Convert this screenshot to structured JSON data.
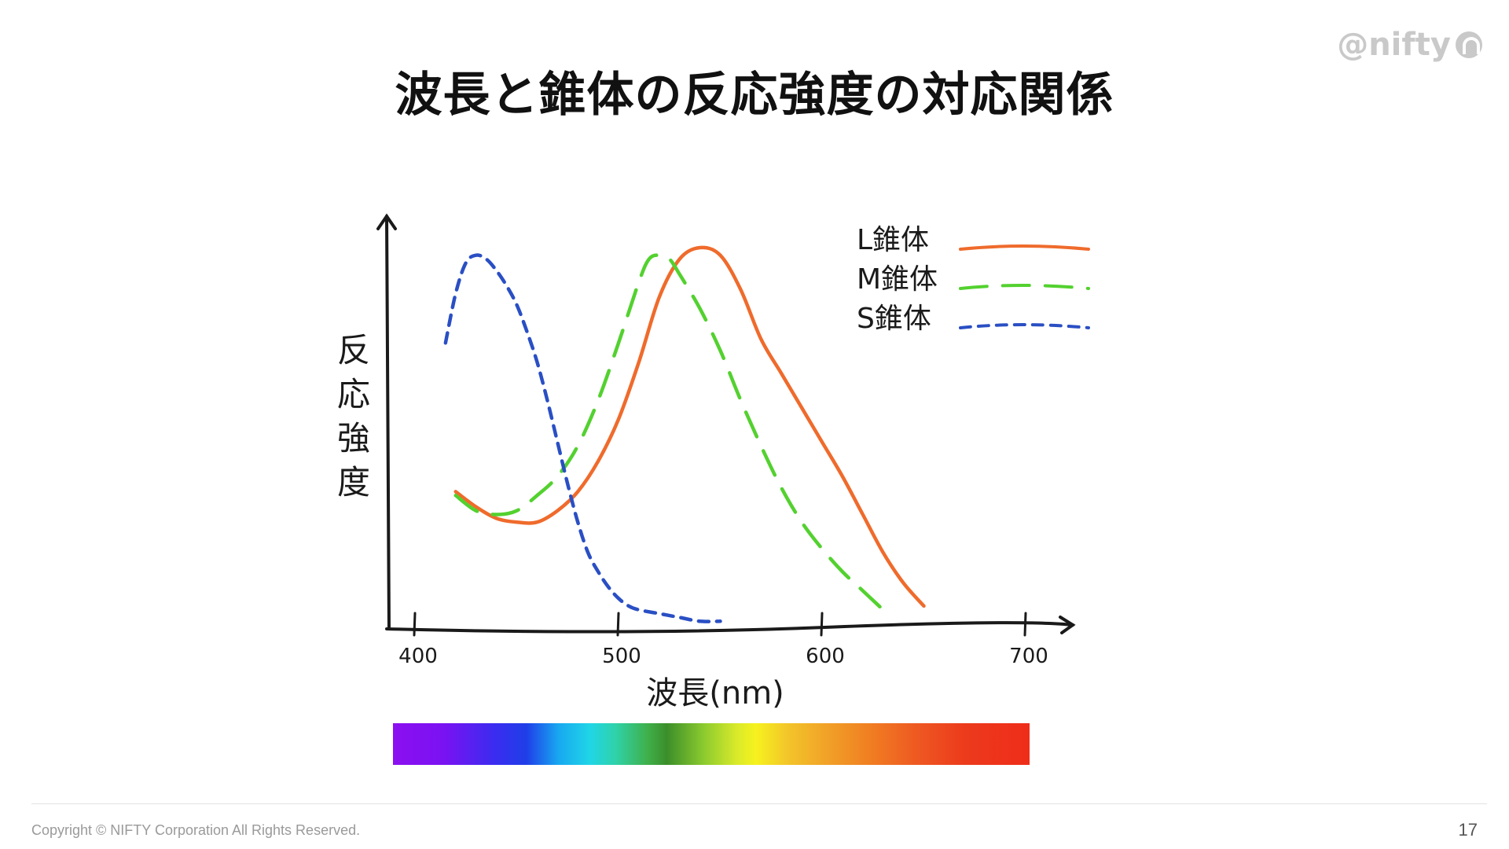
{
  "slide": {
    "title": "波長と錐体の反応強度の対応関係",
    "logo_text": "@nifty",
    "copyright": "Copyright © NIFTY Corporation All Rights Reserved.",
    "page_number": "17"
  },
  "chart_data": {
    "type": "line",
    "title": "",
    "xlabel": "波長(nm)",
    "ylabel": "反応強度",
    "xlim": [
      395,
      725
    ],
    "ylim": [
      0,
      1
    ],
    "x_ticks": [
      400,
      500,
      600,
      700
    ],
    "x_tick_labels": [
      "400",
      "500",
      "600",
      "700"
    ],
    "grid": false,
    "legend_position": "top-right",
    "series": [
      {
        "name": "L錐体",
        "color": "#ef6b2c",
        "dash": "solid",
        "x": [
          420,
          430,
          440,
          450,
          460,
          470,
          480,
          490,
          500,
          510,
          520,
          530,
          540,
          550,
          560,
          570,
          580,
          590,
          600,
          610,
          620,
          630,
          640,
          650
        ],
        "y": [
          0.36,
          0.32,
          0.29,
          0.28,
          0.28,
          0.31,
          0.36,
          0.44,
          0.55,
          0.7,
          0.87,
          0.97,
          1.0,
          0.98,
          0.89,
          0.76,
          0.67,
          0.58,
          0.49,
          0.4,
          0.3,
          0.2,
          0.12,
          0.06
        ]
      },
      {
        "name": "M錐体",
        "color": "#53d12f",
        "dash": "long-dash",
        "x": [
          420,
          430,
          440,
          450,
          460,
          470,
          480,
          490,
          500,
          510,
          515,
          520,
          525,
          530,
          540,
          550,
          560,
          570,
          580,
          590,
          600,
          610,
          620,
          630
        ],
        "y": [
          0.35,
          0.31,
          0.3,
          0.31,
          0.35,
          0.4,
          0.48,
          0.6,
          0.75,
          0.91,
          0.97,
          0.98,
          0.97,
          0.93,
          0.84,
          0.73,
          0.6,
          0.48,
          0.37,
          0.28,
          0.21,
          0.15,
          0.1,
          0.05
        ]
      },
      {
        "name": "S錐体",
        "color": "#2a4fc4",
        "dash": "short-dash",
        "x": [
          415,
          420,
          425,
          430,
          435,
          440,
          445,
          450,
          455,
          460,
          465,
          470,
          475,
          480,
          485,
          490,
          495,
          500,
          505,
          510,
          520,
          530,
          540,
          550
        ],
        "y": [
          0.75,
          0.88,
          0.96,
          0.98,
          0.97,
          0.94,
          0.9,
          0.85,
          0.78,
          0.7,
          0.6,
          0.49,
          0.38,
          0.28,
          0.2,
          0.15,
          0.11,
          0.08,
          0.06,
          0.05,
          0.04,
          0.03,
          0.02,
          0.02
        ]
      }
    ]
  }
}
